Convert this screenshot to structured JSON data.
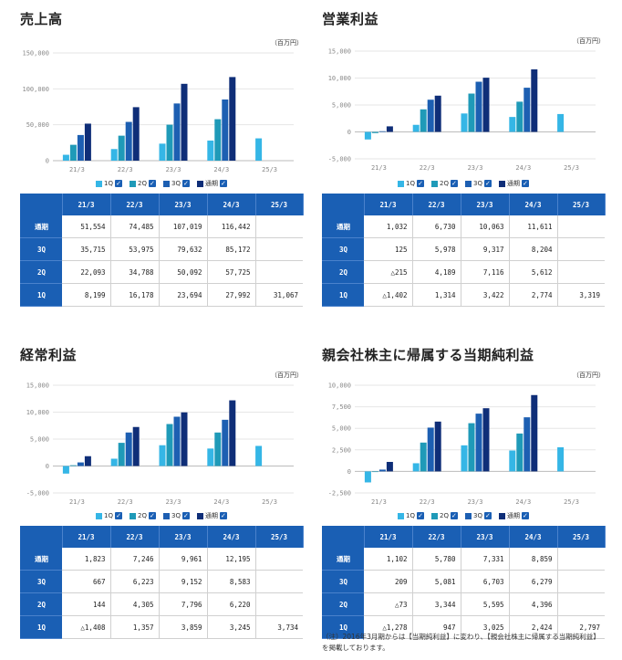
{
  "legend": [
    {
      "label": "1Q",
      "color": "#35b6e6"
    },
    {
      "label": "2Q",
      "color": "#1f9ab8"
    },
    {
      "label": "3Q",
      "color": "#1d5fb2"
    },
    {
      "label": "通期",
      "color": "#0f2e78"
    }
  ],
  "legend_check": "✓",
  "unit": "（百万円）",
  "note_lines": [
    "（注）2016年3月期からは【当期純利益】に変わり、【親会社株主に帰属する当期純利益】",
    "を掲載しております。"
  ],
  "chart_data": [
    {
      "type": "bar",
      "title": "売上高",
      "categories": [
        "21/3",
        "22/3",
        "23/3",
        "24/3",
        "25/3"
      ],
      "series": [
        {
          "name": "1Q",
          "values": [
            8199,
            16178,
            23694,
            27992,
            31067
          ]
        },
        {
          "name": "2Q",
          "values": [
            22093,
            34788,
            50092,
            57725,
            null
          ]
        },
        {
          "name": "3Q",
          "values": [
            35715,
            53975,
            79632,
            85172,
            null
          ]
        },
        {
          "name": "通期",
          "values": [
            51554,
            74485,
            107019,
            116442,
            null
          ]
        }
      ],
      "yticks": [
        0,
        50000,
        100000,
        150000
      ],
      "ytick_labels": [
        "0",
        "50,000",
        "100,000",
        "150,000"
      ],
      "ylim": [
        0,
        150000
      ],
      "table_rows": [
        {
          "label": "通期",
          "cells": [
            "51,554",
            "74,485",
            "107,019",
            "116,442",
            ""
          ]
        },
        {
          "label": "3Q",
          "cells": [
            "35,715",
            "53,975",
            "79,632",
            "85,172",
            ""
          ]
        },
        {
          "label": "2Q",
          "cells": [
            "22,093",
            "34,788",
            "50,092",
            "57,725",
            ""
          ]
        },
        {
          "label": "1Q",
          "cells": [
            "8,199",
            "16,178",
            "23,694",
            "27,992",
            "31,067"
          ]
        }
      ]
    },
    {
      "type": "bar",
      "title": "営業利益",
      "categories": [
        "21/3",
        "22/3",
        "23/3",
        "24/3",
        "25/3"
      ],
      "series": [
        {
          "name": "1Q",
          "values": [
            -1402,
            1314,
            3422,
            2774,
            3319
          ]
        },
        {
          "name": "2Q",
          "values": [
            -215,
            4189,
            7116,
            5612,
            null
          ]
        },
        {
          "name": "3Q",
          "values": [
            125,
            5978,
            9317,
            8204,
            null
          ]
        },
        {
          "name": "通期",
          "values": [
            1032,
            6730,
            10063,
            11611,
            null
          ]
        }
      ],
      "yticks": [
        -5000,
        0,
        5000,
        10000,
        15000
      ],
      "ytick_labels": [
        "-5,000",
        "0",
        "5,000",
        "10,000",
        "15,000"
      ],
      "ylim": [
        -5000,
        15000
      ],
      "table_rows": [
        {
          "label": "通期",
          "cells": [
            "1,032",
            "6,730",
            "10,063",
            "11,611",
            ""
          ]
        },
        {
          "label": "3Q",
          "cells": [
            "125",
            "5,978",
            "9,317",
            "8,204",
            ""
          ]
        },
        {
          "label": "2Q",
          "cells": [
            "△215",
            "4,189",
            "7,116",
            "5,612",
            ""
          ]
        },
        {
          "label": "1Q",
          "cells": [
            "△1,402",
            "1,314",
            "3,422",
            "2,774",
            "3,319"
          ]
        }
      ]
    },
    {
      "type": "bar",
      "title": "経常利益",
      "categories": [
        "21/3",
        "22/3",
        "23/3",
        "24/3",
        "25/3"
      ],
      "series": [
        {
          "name": "1Q",
          "values": [
            -1408,
            1357,
            3859,
            3245,
            3734
          ]
        },
        {
          "name": "2Q",
          "values": [
            144,
            4305,
            7796,
            6220,
            null
          ]
        },
        {
          "name": "3Q",
          "values": [
            667,
            6223,
            9152,
            8583,
            null
          ]
        },
        {
          "name": "通期",
          "values": [
            1823,
            7246,
            9961,
            12195,
            null
          ]
        }
      ],
      "yticks": [
        -5000,
        0,
        5000,
        10000,
        15000
      ],
      "ytick_labels": [
        "-5,000",
        "0",
        "5,000",
        "10,000",
        "15,000"
      ],
      "ylim": [
        -5000,
        15000
      ],
      "table_rows": [
        {
          "label": "通期",
          "cells": [
            "1,823",
            "7,246",
            "9,961",
            "12,195",
            ""
          ]
        },
        {
          "label": "3Q",
          "cells": [
            "667",
            "6,223",
            "9,152",
            "8,583",
            ""
          ]
        },
        {
          "label": "2Q",
          "cells": [
            "144",
            "4,305",
            "7,796",
            "6,220",
            ""
          ]
        },
        {
          "label": "1Q",
          "cells": [
            "△1,408",
            "1,357",
            "3,859",
            "3,245",
            "3,734"
          ]
        }
      ]
    },
    {
      "type": "bar",
      "title": "親会社株主に帰属する当期純利益",
      "categories": [
        "21/3",
        "22/3",
        "23/3",
        "24/3",
        "25/3"
      ],
      "series": [
        {
          "name": "1Q",
          "values": [
            -1278,
            947,
            3025,
            2424,
            2797
          ]
        },
        {
          "name": "2Q",
          "values": [
            -73,
            3344,
            5595,
            4396,
            null
          ]
        },
        {
          "name": "3Q",
          "values": [
            209,
            5081,
            6703,
            6279,
            null
          ]
        },
        {
          "name": "通期",
          "values": [
            1102,
            5780,
            7331,
            8859,
            null
          ]
        }
      ],
      "yticks": [
        -2500,
        0,
        2500,
        5000,
        7500,
        10000
      ],
      "ytick_labels": [
        "-2,500",
        "0",
        "2,500",
        "5,000",
        "7,500",
        "10,000"
      ],
      "ylim": [
        -2500,
        10000
      ],
      "table_rows": [
        {
          "label": "通期",
          "cells": [
            "1,102",
            "5,780",
            "7,331",
            "8,859",
            ""
          ]
        },
        {
          "label": "3Q",
          "cells": [
            "209",
            "5,081",
            "6,703",
            "6,279",
            ""
          ]
        },
        {
          "label": "2Q",
          "cells": [
            "△73",
            "3,344",
            "5,595",
            "4,396",
            ""
          ]
        },
        {
          "label": "1Q",
          "cells": [
            "△1,278",
            "947",
            "3,025",
            "2,424",
            "2,797"
          ]
        }
      ]
    }
  ]
}
